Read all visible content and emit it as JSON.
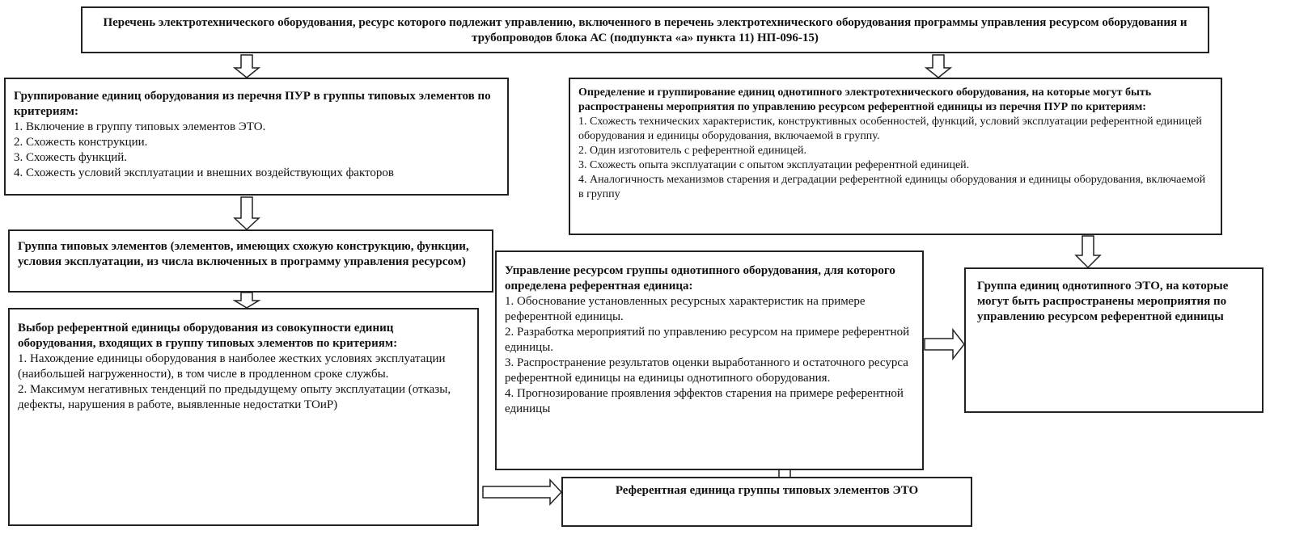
{
  "top_box": {
    "title": "Перечень электротехнического оборудования, ресурс которого подлежит управлению, включенного в перечень электротехнического оборудования программы управления ресурсом оборудования и трубопроводов блока АС (подпункта «а» пункта 11) НП-096-15)"
  },
  "grouping_box": {
    "title": "Группирование единиц оборудования из перечня ПУР в группы типовых элементов по критериям:",
    "items": [
      "1. Включение в группу типовых элементов ЭТО.",
      "2. Схожесть конструкции.",
      "3. Схожесть функций.",
      "4. Схожесть условий эксплуатации и внешних воздействующих факторов"
    ]
  },
  "typical_group_box": {
    "title": "Группа типовых элементов (элементов, имеющих схожую конструкцию, функции, условия эксплуатации, из числа включенных в программу управления ресурсом)"
  },
  "reference_selection_box": {
    "title": "Выбор референтной единицы оборудования из совокупности единиц оборудования, входящих в группу типовых элементов по критериям:",
    "items": [
      "1. Нахождение единицы оборудования в наиболее жестких условиях эксплуатации (наибольшей нагруженности), в том числе в продленном сроке службы.",
      "2. Максимум негативных тенденций по предыдущему опыту эксплуатации (отказы, дефекты, нарушения в работе, выявленные недостатки ТОиР)"
    ]
  },
  "same_type_definition_box": {
    "title": "Определение и группирование единиц однотипного электротехнического оборудования, на которые могут быть распространены мероприятия по управлению ресурсом референтной единицы из перечня ПУР по критериям:",
    "items": [
      "1. Схожесть технических характеристик, конструктивных особенностей, функций, условий эксплуатации референтной единицей оборудования и единицы оборудования, включаемой в группу.",
      "2. Один изготовитель с референтной единицей.",
      "3. Схожесть опыта эксплуатации с опытом эксплуатации референтной единицей.",
      "4. Аналогичность механизмов старения и деградации референтной единицы оборудования и единицы оборудования, включаемой в группу"
    ]
  },
  "resource_management_box": {
    "title": "Управление ресурсом группы однотипного оборудования, для которого определена референтная единица:",
    "items": [
      "1. Обоснование установленных ресурсных характеристик на примере референтной единицы.",
      "2. Разработка мероприятий по управлению ресурсом на примере референтной единицы.",
      "3. Распространение результатов оценки выработанного и остаточного ресурса референтной единицы на единицы однотипного оборудования.",
      "4. Прогнозирование проявления эффектов старения на примере референтной единицы"
    ]
  },
  "same_type_group_box": {
    "title": "Группа единиц однотипного ЭТО, на которые могут быть распространены мероприятия по управлению ресурсом референтной единицы"
  },
  "reference_unit_box": {
    "title": "Референтная единица группы типовых элементов ЭТО"
  }
}
